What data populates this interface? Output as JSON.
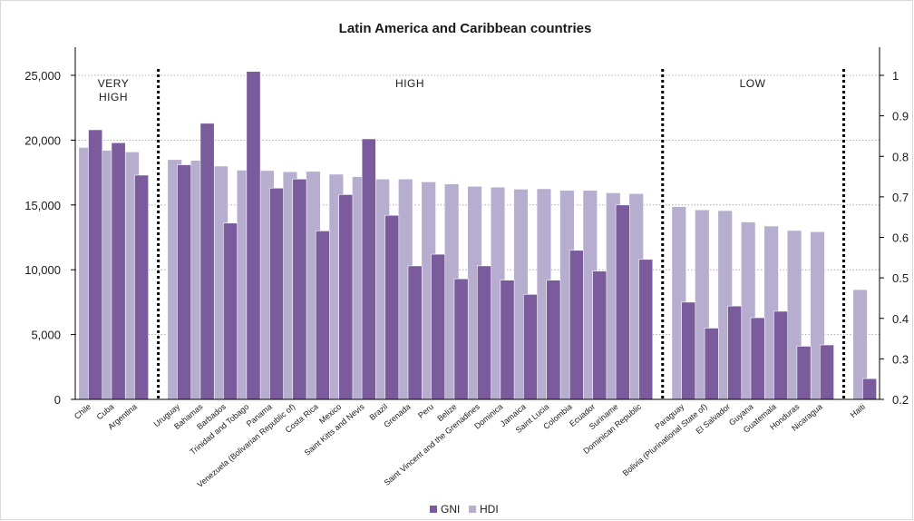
{
  "chart_data": {
    "type": "bar",
    "title": "Latin America and Caribbean countries",
    "categories": [
      "Chile",
      "Cuba",
      "Argentina",
      "Uruguay",
      "Bahamas",
      "Barbados",
      "Trinidad and Tobago",
      "Panama",
      "Venezuela (Bolivarian Republic of)",
      "Costa Rica",
      "Mexico",
      "Saint Kitts and Nevis",
      "Brazil",
      "Grenada",
      "Peru",
      "Belize",
      "Saint Vincent and the Grenadines",
      "Dominica",
      "Jamaica",
      "Saint Lucia",
      "Colombia",
      "Ecuador",
      "Suriname",
      "Dominican Republic",
      "Paraguay",
      "Bolivia (Plurinational State of)",
      "El Salvador",
      "Guyana",
      "Guatemala",
      "Honduras",
      "Nicaragua",
      "Haiti"
    ],
    "series": [
      {
        "name": "GNI",
        "axis": "left",
        "color": "#7a5b9c",
        "values": [
          20800,
          19800,
          17300,
          18100,
          21300,
          13600,
          25300,
          16300,
          17000,
          13000,
          15800,
          20100,
          14200,
          10300,
          11200,
          9300,
          10300,
          9200,
          8100,
          9200,
          11500,
          9900,
          15000,
          10800,
          7500,
          5500,
          7200,
          6300,
          6800,
          4100,
          4200,
          1600
        ]
      },
      {
        "name": "HDI",
        "axis": "right",
        "color": "#b7adcf",
        "values": [
          0.822,
          0.815,
          0.811,
          0.792,
          0.79,
          0.776,
          0.766,
          0.765,
          0.762,
          0.763,
          0.756,
          0.75,
          0.744,
          0.744,
          0.737,
          0.732,
          0.726,
          0.724,
          0.719,
          0.72,
          0.716,
          0.716,
          0.71,
          0.708,
          0.676,
          0.668,
          0.666,
          0.638,
          0.628,
          0.617,
          0.614,
          0.471
        ]
      }
    ],
    "x_gaps_after": [
      2,
      23,
      30
    ],
    "groups": [
      {
        "label": "VERY\nHIGH",
        "from": 0,
        "to": 2
      },
      {
        "label": "HIGH",
        "from": 3,
        "to": 23
      },
      {
        "label": "LOW",
        "from": 24,
        "to": 30
      }
    ],
    "left_axis": {
      "ylim": [
        0,
        25000
      ],
      "ticks": [
        0,
        5000,
        10000,
        15000,
        20000,
        25000
      ],
      "tick_labels": [
        "0",
        "5,000",
        "10,000",
        "15,000",
        "20,000",
        "25,000"
      ]
    },
    "right_axis": {
      "ylim": [
        0.2,
        1
      ],
      "ticks": [
        0.2,
        0.3,
        0.4,
        0.5,
        0.6,
        0.7,
        0.8,
        0.9,
        1
      ],
      "tick_labels": [
        "0.2",
        "0.3",
        "0.4",
        "0.5",
        "0.6",
        "0.7",
        "0.8",
        "0.9",
        "1"
      ]
    },
    "grid": "horizontal dotted",
    "legend": {
      "placement": "bottom-center",
      "items": [
        "GNI",
        "HDI"
      ]
    }
  }
}
